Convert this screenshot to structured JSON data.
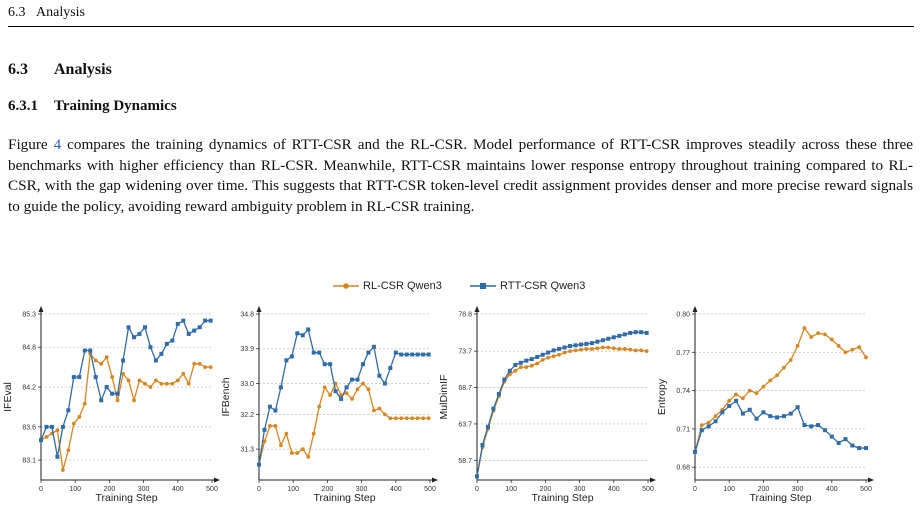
{
  "header": {
    "section_number": "6.3",
    "section_title": "Analysis"
  },
  "section": {
    "number": "6.3",
    "title": "Analysis"
  },
  "subsection": {
    "number": "6.3.1",
    "title": "Training Dynamics"
  },
  "paragraph": {
    "prefix": "Figure ",
    "fig_ref": "4",
    "text": " compares the training dynamics of RTT-CSR and the RL-CSR. Model performance of RTT-CSR improves steadily across these three benchmarks with higher efficiency than RL-CSR. Meanwhile, RTT-CSR maintains lower response entropy throughout training compared to RL-CSR, with the gap widening over time. This suggests that RTT-CSR token-level credit assignment provides denser and more precise reward signals to guide the policy, avoiding reward ambiguity problem in RL-CSR training."
  },
  "legend": [
    {
      "label": "RL-CSR Qwen3",
      "color": "#d9861c",
      "marker": "circle"
    },
    {
      "label": "RTT-CSR Qwen3",
      "color": "#2f6ca8",
      "marker": "square"
    }
  ],
  "chart_data": [
    {
      "type": "line",
      "title": "",
      "xlabel": "Training Step",
      "ylabel": "IFEval",
      "xlim": [
        0,
        500
      ],
      "ylim": [
        82.8,
        85.3
      ],
      "xticks": [
        0,
        100,
        200,
        300,
        400,
        500
      ],
      "yticks": [
        83.1,
        83.6,
        84.2,
        84.8,
        85.3
      ],
      "x": [
        0,
        16,
        32,
        48,
        64,
        80,
        96,
        112,
        128,
        144,
        160,
        176,
        192,
        208,
        224,
        240,
        256,
        272,
        288,
        304,
        320,
        336,
        352,
        368,
        384,
        400,
        416,
        432,
        448,
        464,
        480,
        496
      ],
      "series": [
        {
          "name": "RL-CSR Qwen3",
          "values": [
            83.4,
            83.45,
            83.5,
            83.55,
            82.95,
            83.25,
            83.65,
            83.75,
            83.95,
            84.7,
            84.6,
            84.55,
            84.65,
            84.35,
            84.0,
            84.4,
            84.3,
            84.0,
            84.3,
            84.25,
            84.2,
            84.3,
            84.25,
            84.25,
            84.25,
            84.3,
            84.4,
            84.25,
            84.55,
            84.55,
            84.5,
            84.5
          ],
          "color": "#d9861c",
          "marker": "circle"
        },
        {
          "name": "RTT-CSR Qwen3",
          "values": [
            83.4,
            83.6,
            83.6,
            83.15,
            83.6,
            83.85,
            84.35,
            84.35,
            84.75,
            84.75,
            84.35,
            84.0,
            84.2,
            84.1,
            84.1,
            84.6,
            85.1,
            84.95,
            85.0,
            85.1,
            84.8,
            84.6,
            84.7,
            84.85,
            84.9,
            85.15,
            85.2,
            85.0,
            85.05,
            85.1,
            85.2,
            85.2
          ],
          "color": "#2f6ca8",
          "marker": "square"
        }
      ]
    },
    {
      "type": "line",
      "title": "",
      "xlabel": "Training Step",
      "ylabel": "IFBench",
      "xlim": [
        0,
        500
      ],
      "ylim": [
        30.5,
        34.8
      ],
      "xticks": [
        0,
        100,
        200,
        300,
        400,
        500
      ],
      "yticks": [
        31.3,
        32.2,
        33.0,
        33.9,
        34.8
      ],
      "x": [
        0,
        16,
        32,
        48,
        64,
        80,
        96,
        112,
        128,
        144,
        160,
        176,
        192,
        208,
        224,
        240,
        256,
        272,
        288,
        304,
        320,
        336,
        352,
        368,
        384,
        400,
        416,
        432,
        448,
        464,
        480,
        496
      ],
      "series": [
        {
          "name": "RL-CSR Qwen3",
          "values": [
            30.9,
            31.5,
            31.9,
            31.9,
            31.4,
            31.7,
            31.2,
            31.2,
            31.3,
            31.1,
            31.7,
            32.4,
            32.9,
            32.7,
            33.0,
            32.7,
            32.75,
            32.6,
            32.85,
            33.0,
            32.85,
            32.3,
            32.35,
            32.2,
            32.1,
            32.1,
            32.1,
            32.1,
            32.1,
            32.1,
            32.1,
            32.1
          ],
          "color": "#d9861c",
          "marker": "circle"
        },
        {
          "name": "RTT-CSR Qwen3",
          "values": [
            30.9,
            31.8,
            32.4,
            32.3,
            32.9,
            33.6,
            33.7,
            34.3,
            34.25,
            34.4,
            33.8,
            33.8,
            33.5,
            33.5,
            32.8,
            32.6,
            32.9,
            33.1,
            33.1,
            33.5,
            33.8,
            33.95,
            33.2,
            33.0,
            33.4,
            33.8,
            33.75,
            33.75,
            33.75,
            33.75,
            33.75,
            33.75
          ],
          "color": "#2f6ca8",
          "marker": "square"
        }
      ]
    },
    {
      "type": "line",
      "title": "",
      "xlabel": "Training Step",
      "ylabel": "MulDimIF",
      "xlim": [
        0,
        500
      ],
      "ylim": [
        56.0,
        78.8
      ],
      "xticks": [
        0,
        100,
        200,
        300,
        400,
        500
      ],
      "yticks": [
        58.7,
        63.7,
        68.7,
        73.7,
        78.8
      ],
      "x": [
        0,
        16,
        32,
        48,
        64,
        80,
        96,
        112,
        128,
        144,
        160,
        176,
        192,
        208,
        224,
        240,
        256,
        272,
        288,
        304,
        320,
        336,
        352,
        368,
        384,
        400,
        416,
        432,
        448,
        464,
        480,
        496
      ],
      "series": [
        {
          "name": "RL-CSR Qwen3",
          "values": [
            56.5,
            60.5,
            63.0,
            65.5,
            67.5,
            69.5,
            70.5,
            71.0,
            71.5,
            71.5,
            71.7,
            72.0,
            72.5,
            72.8,
            73.0,
            73.2,
            73.5,
            73.7,
            73.8,
            73.9,
            74.0,
            74.0,
            74.1,
            74.2,
            74.2,
            74.1,
            74.0,
            74.0,
            73.9,
            73.8,
            73.8,
            73.7
          ],
          "color": "#d9861c",
          "marker": "circle"
        },
        {
          "name": "RTT-CSR Qwen3",
          "values": [
            56.5,
            60.8,
            63.3,
            65.8,
            67.8,
            69.8,
            71.0,
            71.8,
            72.1,
            72.4,
            72.6,
            72.9,
            73.2,
            73.5,
            73.8,
            74.0,
            74.2,
            74.4,
            74.5,
            74.6,
            74.7,
            74.8,
            75.0,
            75.2,
            75.4,
            75.6,
            75.8,
            76.0,
            76.2,
            76.3,
            76.3,
            76.2
          ],
          "color": "#2f6ca8",
          "marker": "square"
        }
      ]
    },
    {
      "type": "line",
      "title": "",
      "xlabel": "Training Step",
      "ylabel": "Entropy",
      "xlim": [
        0,
        500
      ],
      "ylim": [
        0.67,
        0.8
      ],
      "xticks": [
        0,
        100,
        200,
        300,
        400,
        500
      ],
      "yticks": [
        0.68,
        0.71,
        0.74,
        0.77,
        0.8
      ],
      "x": [
        0,
        20,
        40,
        60,
        80,
        100,
        120,
        140,
        160,
        180,
        200,
        220,
        240,
        260,
        280,
        300,
        320,
        340,
        360,
        380,
        400,
        420,
        440,
        460,
        480,
        500
      ],
      "series": [
        {
          "name": "RL-CSR Qwen3",
          "values": [
            0.692,
            0.713,
            0.715,
            0.72,
            0.725,
            0.732,
            0.737,
            0.734,
            0.74,
            0.738,
            0.743,
            0.748,
            0.752,
            0.758,
            0.764,
            0.775,
            0.789,
            0.782,
            0.785,
            0.784,
            0.78,
            0.775,
            0.77,
            0.772,
            0.774,
            0.766
          ],
          "color": "#d9861c",
          "marker": "circle"
        },
        {
          "name": "RTT-CSR Qwen3",
          "values": [
            0.692,
            0.709,
            0.712,
            0.716,
            0.723,
            0.728,
            0.732,
            0.722,
            0.725,
            0.718,
            0.723,
            0.72,
            0.719,
            0.72,
            0.722,
            0.727,
            0.713,
            0.712,
            0.713,
            0.709,
            0.704,
            0.699,
            0.702,
            0.697,
            0.695,
            0.695
          ],
          "color": "#2f6ca8",
          "marker": "square"
        }
      ]
    }
  ]
}
